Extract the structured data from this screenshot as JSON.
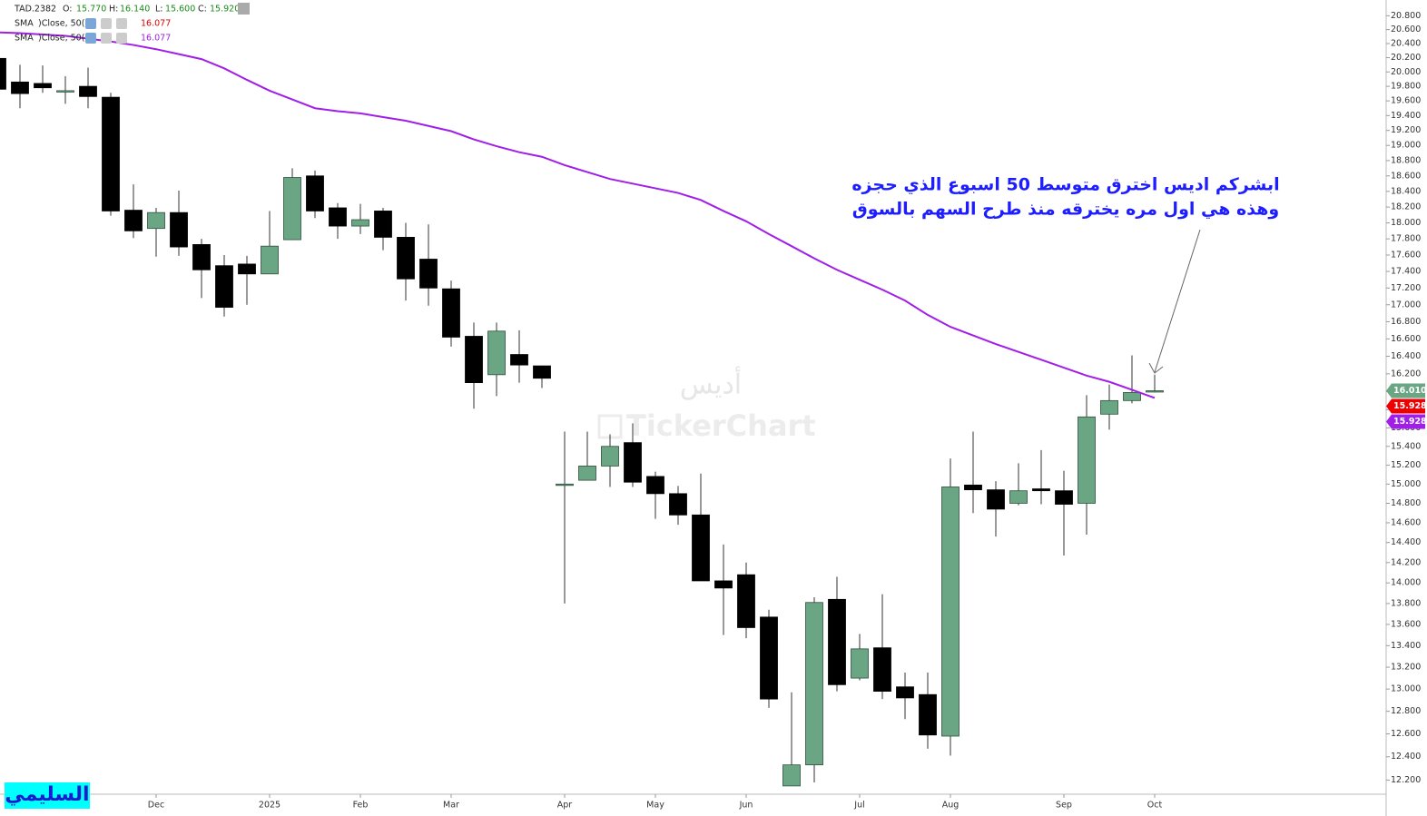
{
  "chart_data": {
    "type": "candlestick",
    "header": {
      "symbol": "TAD.2382",
      "fields": [
        [
          "O:",
          "15.770"
        ],
        [
          "H:",
          "16.140"
        ],
        [
          "L:",
          "15.600"
        ],
        [
          "C:",
          "15.920"
        ]
      ]
    },
    "indicators": [
      {
        "name": "SMA",
        "params": ")Close, 50(",
        "value_label": "16.077",
        "color": "#e00000"
      },
      {
        "name": "SMA",
        "params": ")Close, 50(",
        "value_label": "16.077",
        "color": "#a11ee8",
        "values": [
          20.56,
          20.55,
          20.53,
          20.51,
          20.47,
          20.43,
          20.38,
          20.32,
          20.25,
          20.18,
          20.05,
          19.89,
          19.74,
          19.62,
          19.5,
          19.46,
          19.43,
          19.38,
          19.33,
          19.26,
          19.19,
          19.08,
          18.99,
          18.91,
          18.85,
          18.74,
          18.65,
          18.56,
          18.5,
          18.44,
          18.38,
          18.29,
          18.15,
          18.02,
          17.86,
          17.71,
          17.56,
          17.42,
          17.3,
          17.18,
          17.05,
          16.88,
          16.74,
          16.64,
          16.54,
          16.45,
          16.36,
          16.27,
          16.18,
          16.11,
          16.02,
          15.93
        ]
      }
    ],
    "categories": [
      null,
      null,
      null,
      null,
      null,
      null,
      null,
      "Dec",
      null,
      null,
      null,
      null,
      "2025",
      null,
      null,
      null,
      "Feb",
      null,
      null,
      null,
      "Mar",
      null,
      null,
      null,
      null,
      "Apr",
      null,
      null,
      null,
      "May",
      null,
      null,
      null,
      "Jun",
      null,
      null,
      null,
      null,
      "Jul",
      null,
      null,
      null,
      "Aug",
      null,
      null,
      null,
      null,
      "Sep",
      null,
      null,
      null,
      "Oct"
    ],
    "open": [
      20.19,
      19.86,
      19.84,
      19.73,
      19.8,
      19.65,
      18.16,
      17.93,
      18.13,
      17.73,
      17.47,
      17.49,
      17.37,
      17.79,
      18.6,
      18.19,
      17.96,
      18.15,
      17.82,
      17.55,
      17.19,
      16.63,
      16.19,
      16.42,
      16.29,
      14.99,
      15.04,
      15.19,
      15.44,
      15.08,
      14.9,
      14.68,
      14.02,
      14.08,
      13.67,
      12.15,
      12.33,
      13.84,
      13.1,
      13.38,
      13.02,
      12.95,
      12.58,
      14.99,
      14.94,
      14.8,
      14.95,
      14.93,
      14.8,
      15.75,
      15.9,
      16.0
    ],
    "high": [
      20.19,
      20.1,
      20.09,
      19.94,
      20.06,
      19.71,
      18.49,
      18.19,
      18.41,
      17.8,
      17.6,
      17.59,
      18.15,
      18.7,
      18.67,
      18.25,
      18.24,
      18.19,
      18.0,
      17.98,
      17.29,
      16.79,
      16.79,
      16.7,
      16.29,
      15.56,
      15.56,
      15.53,
      15.65,
      15.13,
      14.98,
      15.11,
      14.38,
      14.2,
      13.74,
      12.97,
      13.86,
      14.06,
      13.51,
      13.89,
      13.15,
      13.15,
      15.27,
      15.56,
      15.03,
      15.22,
      15.36,
      15.14,
      15.96,
      16.08,
      16.41,
      16.19
    ],
    "low": [
      19.76,
      19.5,
      19.71,
      19.56,
      19.5,
      18.09,
      17.81,
      17.58,
      17.59,
      17.08,
      16.86,
      17.0,
      17.37,
      17.79,
      18.06,
      17.8,
      17.86,
      17.66,
      17.05,
      16.99,
      16.51,
      15.81,
      15.95,
      16.1,
      16.04,
      13.8,
      15.04,
      14.97,
      14.97,
      14.64,
      14.58,
      14.02,
      13.5,
      13.47,
      12.83,
      12.15,
      12.18,
      12.98,
      13.08,
      12.91,
      12.73,
      12.47,
      12.41,
      14.7,
      14.46,
      14.78,
      14.79,
      14.27,
      14.48,
      15.58,
      15.87,
      15.99
    ],
    "close": [
      19.76,
      19.7,
      19.78,
      19.74,
      19.66,
      18.15,
      17.9,
      18.13,
      17.7,
      17.42,
      16.97,
      17.37,
      17.71,
      18.58,
      18.15,
      17.96,
      18.04,
      17.82,
      17.31,
      17.2,
      16.62,
      16.1,
      16.69,
      16.3,
      16.15,
      15.0,
      15.19,
      15.4,
      15.02,
      14.9,
      14.68,
      14.02,
      13.95,
      13.57,
      12.91,
      12.33,
      13.81,
      13.04,
      13.37,
      12.98,
      12.92,
      12.59,
      14.97,
      14.94,
      14.74,
      14.93,
      14.93,
      14.79,
      15.72,
      15.9,
      15.99,
      16.01
    ],
    "up_color": "#6aa584",
    "down_color": "#000000",
    "log_scale": true,
    "ylim": [
      12.08,
      21.03
    ],
    "yticks": [
      {
        "value": 12.2,
        "label": "12.200"
      },
      {
        "value": 12.4,
        "label": "12.400"
      },
      {
        "value": 12.6,
        "label": "12.600"
      },
      {
        "value": 12.8,
        "label": "12.800"
      },
      {
        "value": 13.0,
        "label": "13.000"
      },
      {
        "value": 13.2,
        "label": "13.200"
      },
      {
        "value": 13.4,
        "label": "13.400"
      },
      {
        "value": 13.6,
        "label": "13.600"
      },
      {
        "value": 13.8,
        "label": "13.800"
      },
      {
        "value": 14.0,
        "label": "14.000"
      },
      {
        "value": 14.2,
        "label": "14.200"
      },
      {
        "value": 14.4,
        "label": "14.400"
      },
      {
        "value": 14.6,
        "label": "14.600"
      },
      {
        "value": 14.8,
        "label": "14.800"
      },
      {
        "value": 15.0,
        "label": "15.000"
      },
      {
        "value": 15.2,
        "label": "15.200"
      },
      {
        "value": 15.4,
        "label": "15.400"
      },
      {
        "value": 15.6,
        "label": "15.600"
      },
      {
        "value": 15.8,
        "label": "15.800"
      },
      {
        "value": 16.0,
        "label": "16.000"
      },
      {
        "value": 16.2,
        "label": "16.200"
      },
      {
        "value": 16.4,
        "label": "16.400"
      },
      {
        "value": 16.6,
        "label": "16.600"
      },
      {
        "value": 16.8,
        "label": "16.800"
      },
      {
        "value": 17.0,
        "label": "17.000"
      },
      {
        "value": 17.2,
        "label": "17.200"
      },
      {
        "value": 17.4,
        "label": "17.400"
      },
      {
        "value": 17.6,
        "label": "17.600"
      },
      {
        "value": 17.8,
        "label": "17.800"
      },
      {
        "value": 18.0,
        "label": "18.000"
      },
      {
        "value": 18.2,
        "label": "18.200"
      },
      {
        "value": 18.4,
        "label": "18.400"
      },
      {
        "value": 18.6,
        "label": "18.600"
      },
      {
        "value": 18.8,
        "label": "18.800"
      },
      {
        "value": 19.0,
        "label": "19.000"
      },
      {
        "value": 19.2,
        "label": "19.200"
      },
      {
        "value": 19.4,
        "label": "19.400"
      },
      {
        "value": 19.6,
        "label": "19.600"
      },
      {
        "value": 19.8,
        "label": "19.800"
      },
      {
        "value": 20.0,
        "label": "20.000"
      },
      {
        "value": 20.2,
        "label": "20.200"
      },
      {
        "value": 20.4,
        "label": "20.400"
      },
      {
        "value": 20.6,
        "label": "20.600"
      },
      {
        "value": 20.8,
        "label": "20.800"
      }
    ],
    "price_tags": [
      {
        "value": 16.01,
        "label": "16.010",
        "color": "#6aa584"
      },
      {
        "value": 15.928,
        "label": "15.928",
        "color": "#ee0000"
      },
      {
        "value": 15.928,
        "label": "15.928",
        "color": "#a11ee8"
      }
    ],
    "annotation": [
      "ابشركم اديس اخترق متوسط 50 اسبوع الذي حجزه",
      "وهذه هي اول مره يخترقه منذ طرح السهم بالسوق"
    ],
    "watermark": [
      "أديس",
      "TickerChart"
    ],
    "signature": "السليمي"
  }
}
